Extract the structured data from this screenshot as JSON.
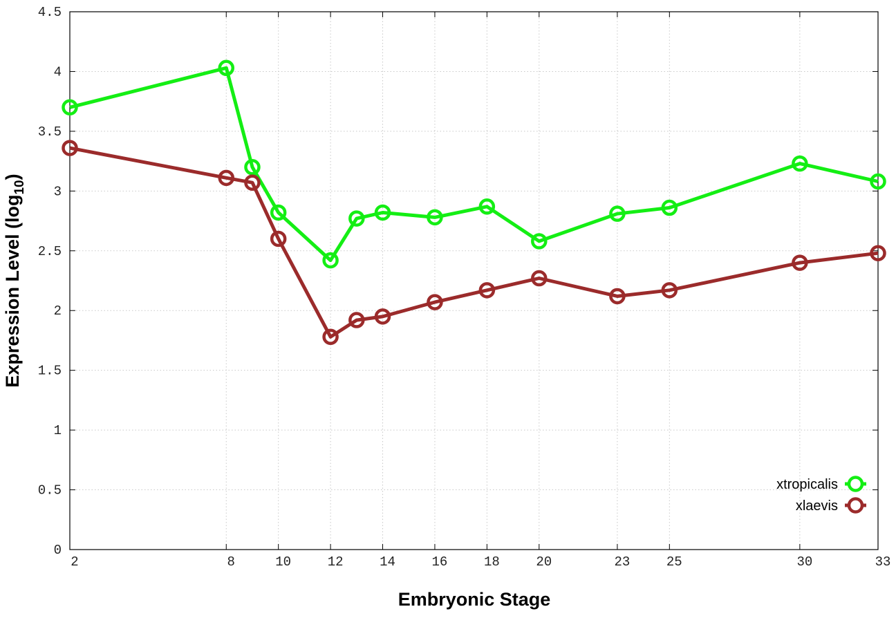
{
  "chart_data": {
    "type": "line",
    "xlabel": "Embryonic Stage",
    "ylabel_main": "Expression Level (log",
    "ylabel_sub": "10",
    "ylabel_close": ")",
    "x": [
      2,
      8,
      9,
      10,
      12,
      13,
      14,
      16,
      18,
      20,
      23,
      25,
      30,
      33
    ],
    "x_ticks": [
      2,
      8,
      10,
      12,
      14,
      16,
      18,
      20,
      23,
      25,
      30,
      33
    ],
    "x_tick_labels": [
      "2",
      "8",
      "10",
      "12",
      "14",
      "16",
      "18",
      "20",
      "23",
      "25",
      "30",
      "33"
    ],
    "xlim": [
      2,
      33
    ],
    "y_ticks": [
      0,
      0.5,
      1,
      1.5,
      2,
      2.5,
      3,
      3.5,
      4,
      4.5
    ],
    "y_tick_labels": [
      "0",
      "0.5",
      "1",
      "1.5",
      "2",
      "2.5",
      "3",
      "3.5",
      "4",
      "4.5"
    ],
    "ylim": [
      0,
      4.5
    ],
    "grid": true,
    "legend_position": "bottom-right",
    "series": [
      {
        "name": "xtropicalis",
        "color": "#14ee14",
        "values": [
          3.7,
          4.03,
          3.2,
          2.82,
          2.42,
          2.77,
          2.82,
          2.78,
          2.87,
          2.58,
          2.81,
          2.86,
          3.23,
          3.08
        ]
      },
      {
        "name": "xlaevis",
        "color": "#9b2b2b",
        "values": [
          3.36,
          3.11,
          3.07,
          2.6,
          1.78,
          1.92,
          1.95,
          2.07,
          2.17,
          2.27,
          2.12,
          2.17,
          2.4,
          2.48
        ]
      }
    ]
  }
}
